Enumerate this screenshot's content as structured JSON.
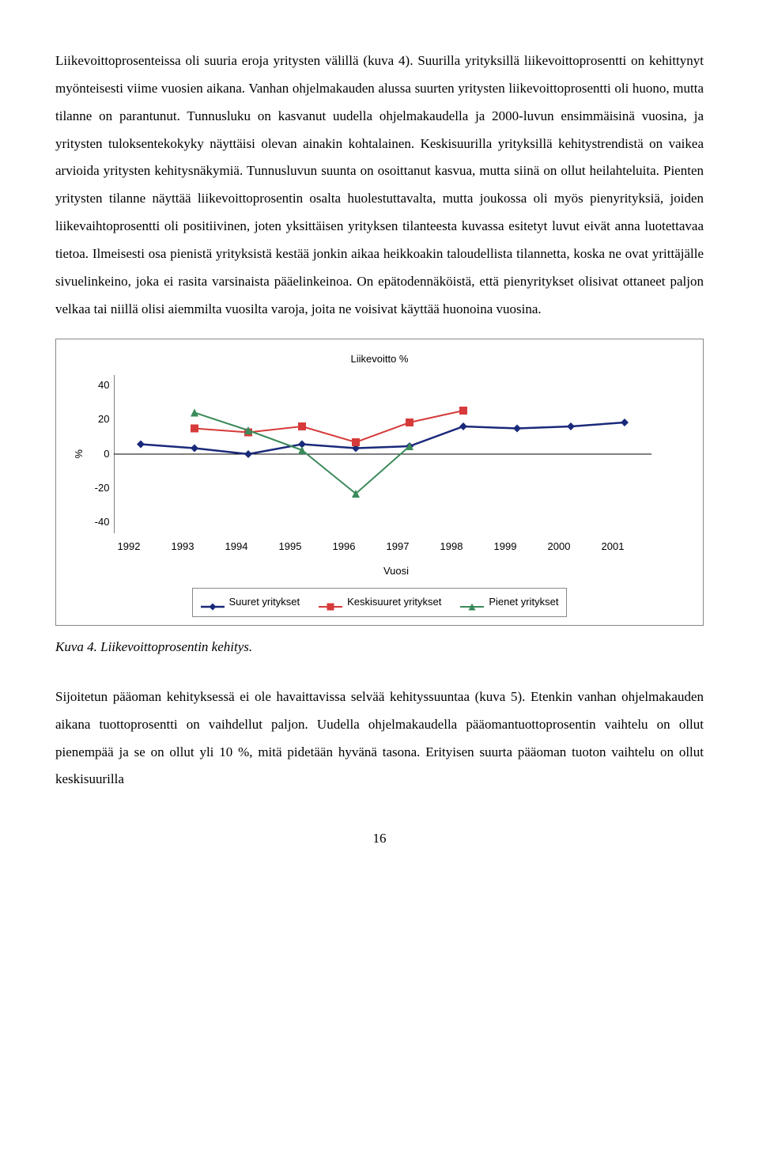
{
  "paragraphs": {
    "p1": "Liikevoittoprosenteissa oli suuria eroja yritysten välillä (kuva 4). Suurilla yrityksillä liikevoittoprosentti on kehittynyt myönteisesti viime vuosien aikana. Vanhan ohjelmakauden alussa suurten yritysten liikevoittoprosentti oli huono, mutta tilanne on parantunut. Tunnusluku on kasvanut uudella ohjelmakaudella ja 2000-luvun ensimmäisinä vuosina, ja yritysten tuloksentekokyky näyttäisi olevan ainakin kohtalainen. Keskisuurilla yrityksillä kehitystrendistä on vaikea arvioida yritysten kehitysnäkymiä. Tunnusluvun suunta on osoittanut kasvua, mutta siinä on ollut heilahteluita. Pienten yritysten tilanne näyttää liikevoittoprosentin osalta huolestuttavalta, mutta joukossa oli myös pienyrityksiä, joiden liikevaihtoprosentti oli positiivinen, joten yksittäisen yrityksen tilanteesta kuvassa esitetyt luvut eivät anna luotettavaa tietoa. Ilmeisesti osa pienistä yrityksistä kestää jonkin aikaa heikkoakin taloudellista tilannetta, koska ne ovat yrittäjälle sivuelinkeino, joka ei rasita varsinaista pääelinkeinoa. On epätodennäköistä, että pienyritykset olisivat ottaneet paljon velkaa tai niillä olisi aiemmilta vuosilta varoja, joita ne voisivat käyttää huonoina vuosina.",
    "p2": "Sijoitetun pääoman kehityksessä ei ole havaittavissa selvää kehityssuuntaa (kuva 5). Etenkin vanhan ohjelmakauden aikana tuottoprosentti on vaihdellut paljon. Uudella ohjelmakaudella pääomantuottoprosentin vaihtelu on ollut pienempää ja se on ollut yli 10 %, mitä pidetään hyvänä tasona. Erityisen suurta pääoman tuoton vaihtelu on ollut keskisuurilla"
  },
  "caption": "Kuva 4. Liikevoittoprosentin kehitys.",
  "pagenum": "16",
  "chart": {
    "type": "line",
    "title": "Liikevoitto %",
    "xlabel": "Vuosi",
    "ylabel": "%",
    "background_color": "#ffffff",
    "axis_color": "#000000",
    "ylim": [
      -40,
      40
    ],
    "yticks": [
      40,
      20,
      0,
      -20,
      -40
    ],
    "categories": [
      "1992",
      "1993",
      "1994",
      "1995",
      "1996",
      "1997",
      "1998",
      "1999",
      "2000",
      "2001"
    ],
    "series": [
      {
        "name": "Suuret yritykset",
        "color": "#1a2a7a",
        "marker": "diamond",
        "linewidth": 2.5,
        "values": [
          5,
          3,
          0,
          5,
          3,
          4,
          14,
          13,
          14,
          16
        ]
      },
      {
        "name": "Keskisuuret yritykset",
        "color": "#d63a3a",
        "marker": "square",
        "linewidth": 2,
        "values": [
          null,
          13,
          11,
          14,
          6,
          16,
          22,
          null,
          null,
          null
        ]
      },
      {
        "name": "Pienet yritykset",
        "color": "#3a8a5a",
        "marker": "triangle",
        "linewidth": 2,
        "values": [
          null,
          21,
          12,
          2,
          -20,
          4,
          null,
          null,
          null,
          null
        ]
      }
    ],
    "legend_items": [
      "Suuret yritykset",
      "Keskisuuret yritykset",
      "Pienet yritykset"
    ],
    "title_fontsize": 13,
    "label_fontsize": 13,
    "tick_fontsize": 13
  }
}
